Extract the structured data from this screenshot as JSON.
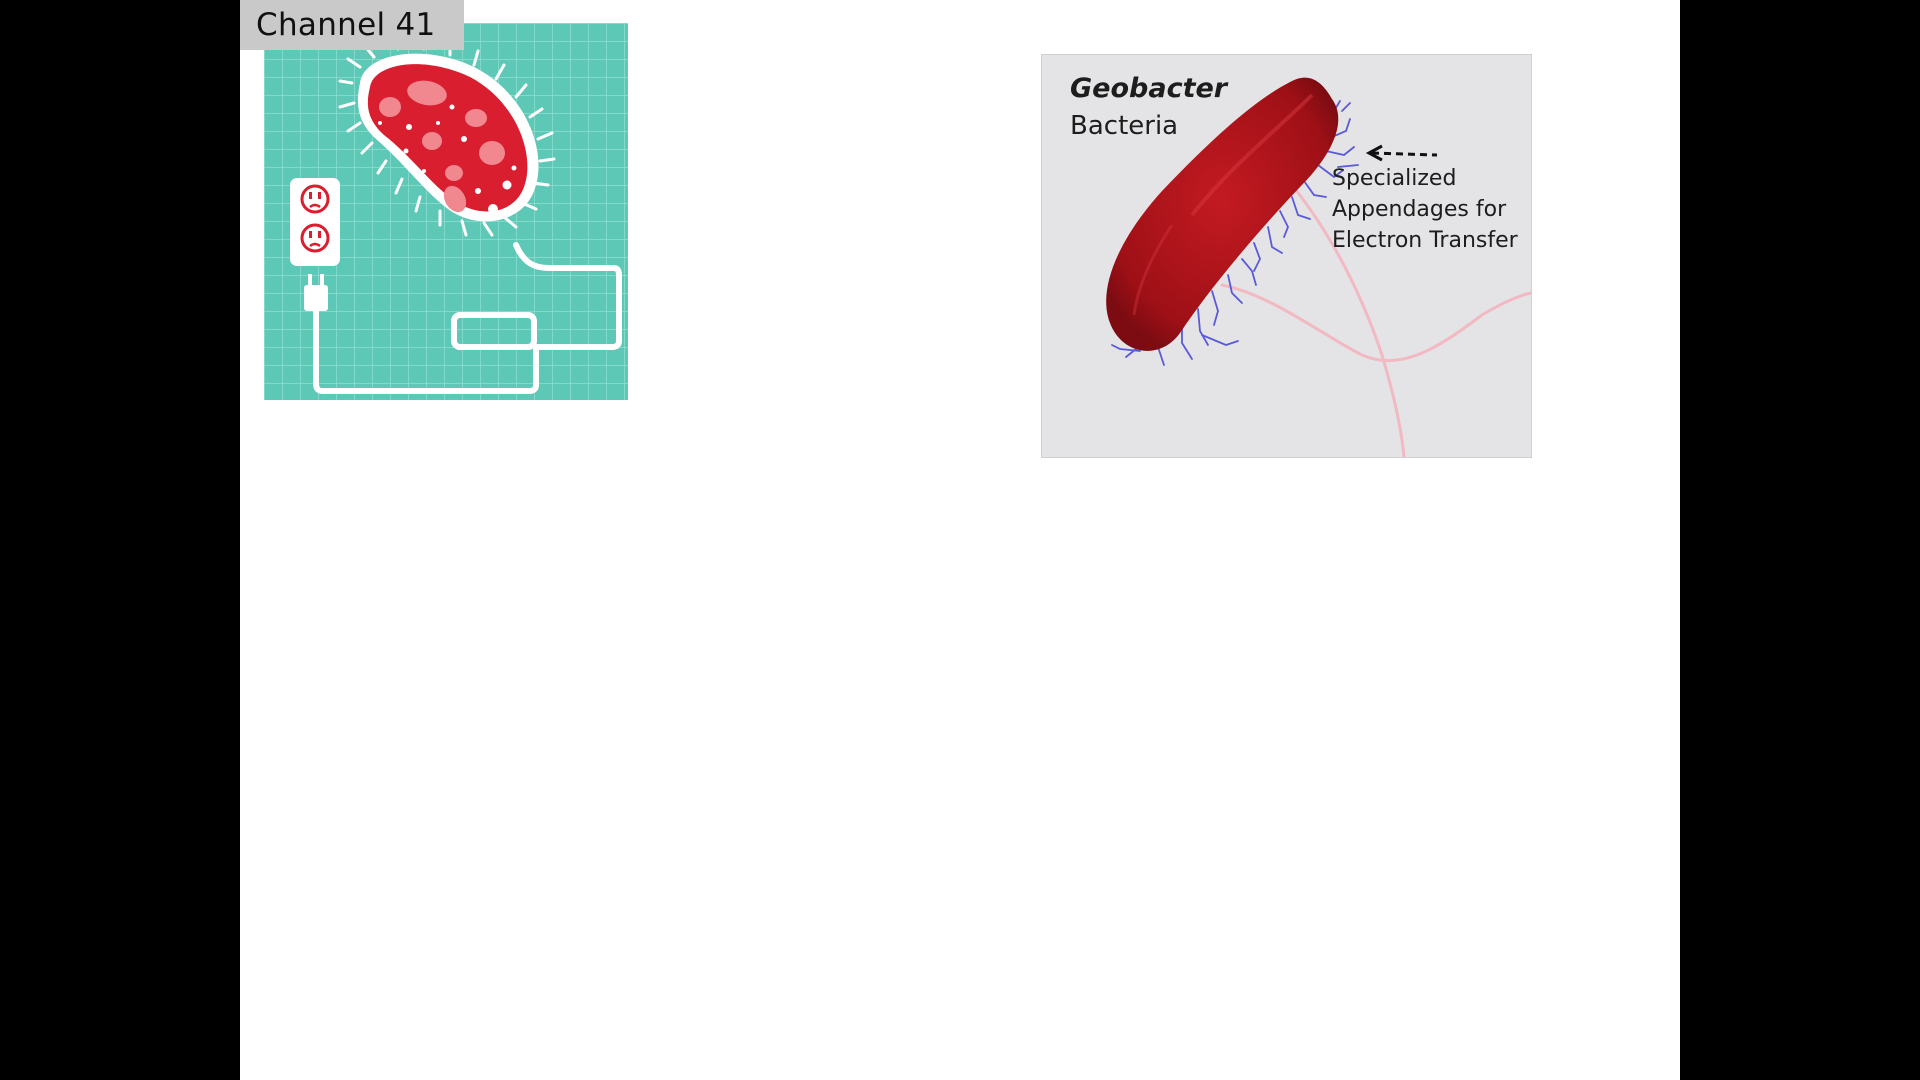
{
  "channel_tag": {
    "label": "Channel 41"
  },
  "illustration_left": {
    "icon": "electric-bacterium-icon",
    "colors": {
      "background": "#5ec8b7",
      "bacterium": "#d81e2f",
      "outlet": "#ffffff"
    }
  },
  "illustration_right": {
    "title": "Geobacter",
    "subtitle": "Bacteria",
    "annotation_lines": [
      "Specialized",
      "Appendages for",
      "Electron Transfer"
    ],
    "colors": {
      "background": "#e4e4e6",
      "cell": "#b8141c",
      "appendages": "#5a5ad8",
      "flagella": "#f2b9c2"
    }
  }
}
